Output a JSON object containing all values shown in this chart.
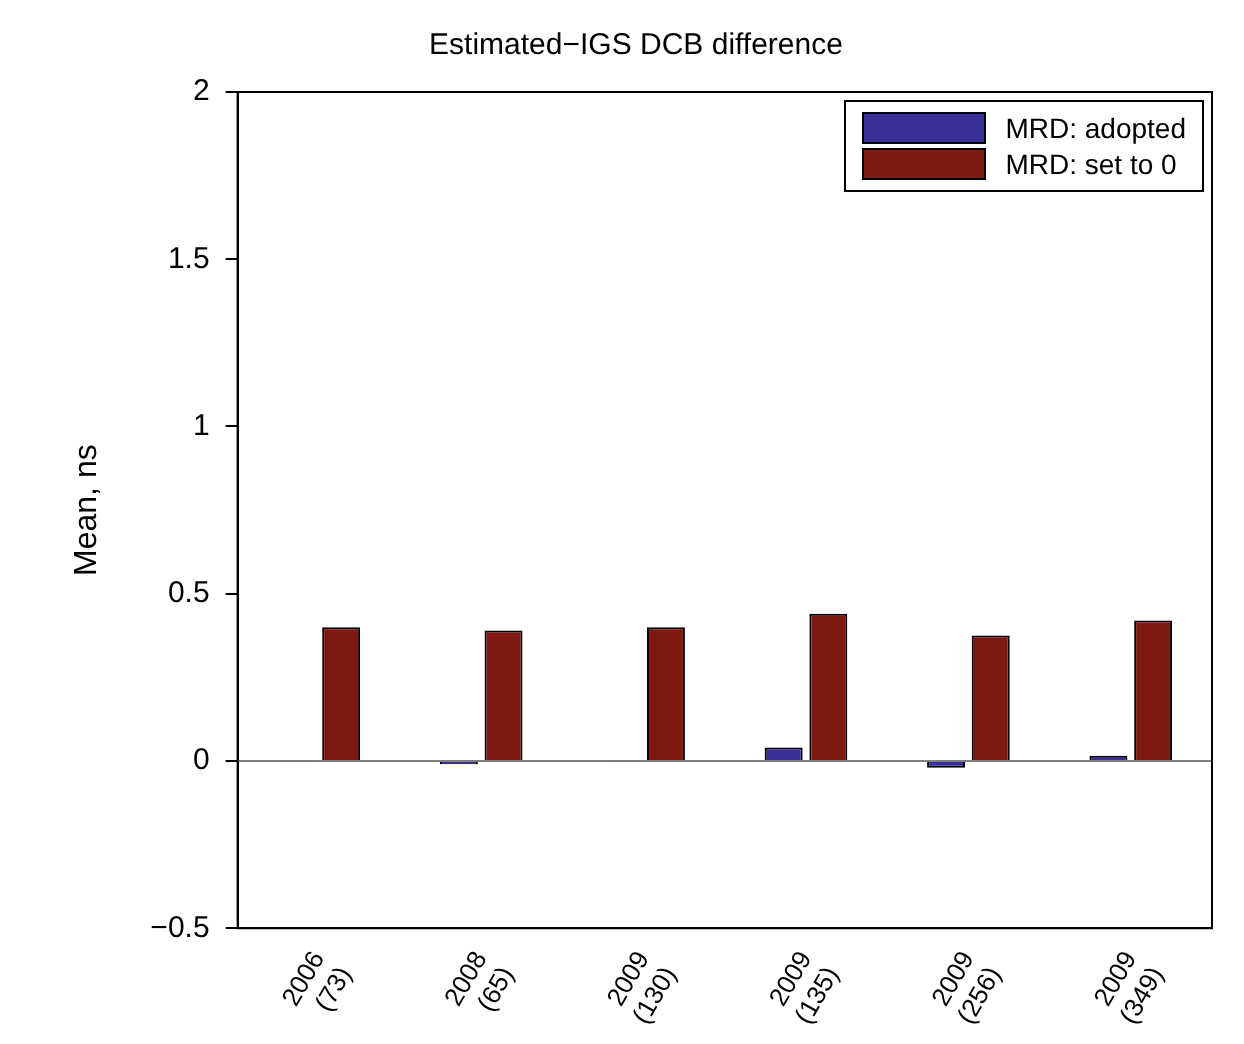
{
  "chart_data": {
    "type": "bar",
    "title": "Estimated−IGS DCB difference",
    "ylabel": "Mean, ns",
    "categories": [
      "2006\n(73)",
      "2008\n(65)",
      "2009\n(130)",
      "2009\n(135)",
      "2009\n(256)",
      "2009\n(349)"
    ],
    "series": [
      {
        "name": "MRD: adopted",
        "color": "#3a2f9a",
        "values": [
          0.002,
          -0.01,
          0.002,
          0.04,
          -0.02,
          0.016
        ]
      },
      {
        "name": "MRD: set to 0",
        "color": "#801812",
        "values": [
          0.4,
          0.39,
          0.4,
          0.44,
          0.375,
          0.42
        ]
      }
    ],
    "ylim": [
      -0.5,
      2
    ],
    "yticks": [
      {
        "value": -0.5,
        "label": "−0.5"
      },
      0,
      0.5,
      1,
      1.5,
      2
    ],
    "ref_lines": [
      {
        "axis": "y",
        "value": 0,
        "color": "#808080"
      }
    ],
    "grid": false,
    "legend": "top right"
  }
}
